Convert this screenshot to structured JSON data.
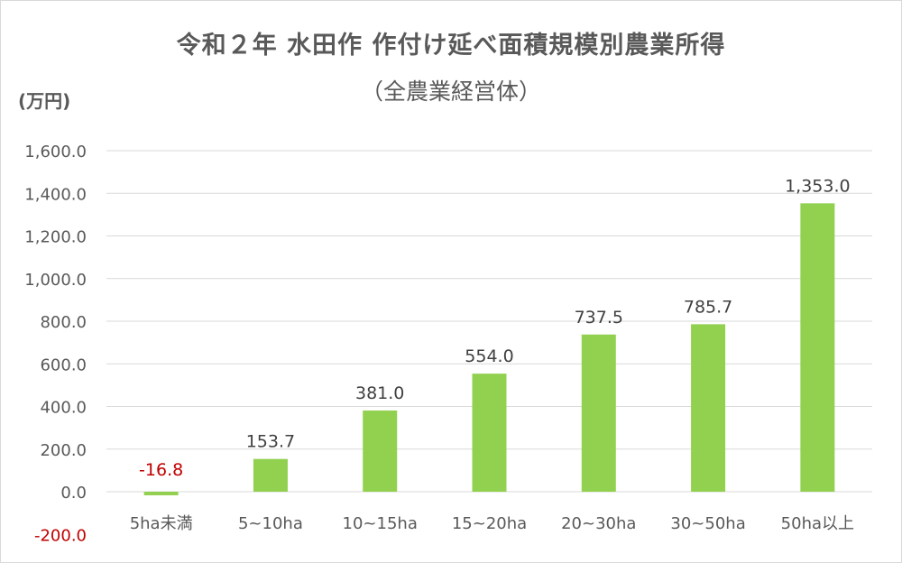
{
  "title": "令和２年 水田作 作付け延べ面積規模別農業所得",
  "subtitle": "（全農業経営体）",
  "unit_label": "(万円)",
  "colors": {
    "bar": "#92d050",
    "text": "#595959",
    "label": "#404040",
    "negative": "#c00000",
    "grid": "#d9d9d9"
  },
  "chart_data": {
    "type": "bar",
    "title": "令和２年 水田作 作付け延べ面積規模別農業所得",
    "subtitle": "（全農業経営体）",
    "ylabel": "(万円)",
    "xlabel": "",
    "categories": [
      "5ha未満",
      "5~10ha",
      "10~15ha",
      "15~20ha",
      "20~30ha",
      "30~50ha",
      "50ha以上"
    ],
    "values": [
      -16.8,
      153.7,
      381.0,
      554.0,
      737.5,
      785.7,
      1353.0
    ],
    "value_labels": [
      "-16.8",
      "153.7",
      "381.0",
      "554.0",
      "737.5",
      "785.7",
      "1,353.0"
    ],
    "ylim": [
      -200,
      1600
    ],
    "yticks": [
      -200,
      0,
      200,
      400,
      600,
      800,
      1000,
      1200,
      1400,
      1600
    ],
    "ytick_labels": [
      "-200.0",
      "0.0",
      "200.0",
      "400.0",
      "600.0",
      "800.0",
      "1,000.0",
      "1,200.0",
      "1,400.0",
      "1,600.0"
    ],
    "grid": true,
    "legend": "none"
  }
}
